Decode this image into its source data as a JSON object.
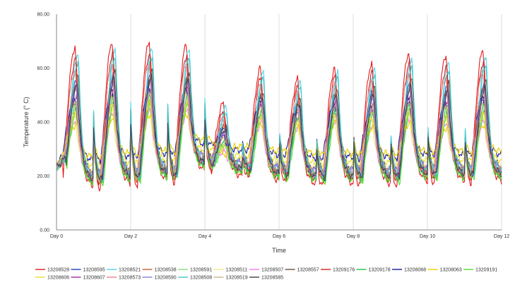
{
  "chart_data": {
    "type": "line",
    "title": "",
    "xlabel": "Time",
    "ylabel": "Temperature (° C)",
    "ylim": [
      0,
      80
    ],
    "xlim": [
      0,
      12
    ],
    "y_ticks": [
      "0.00",
      "20.00",
      "40.00",
      "60.00",
      "80.00"
    ],
    "x_ticks": [
      "Day 0",
      "Day 2",
      "Day 4",
      "Day 6",
      "Day 8",
      "Day 10",
      "Day 12"
    ],
    "grid": "vertical",
    "legend_position": "bottom",
    "day_peaks_top": [
      68,
      70,
      70,
      69,
      47,
      60,
      56,
      60,
      62,
      66,
      65,
      67
    ],
    "day_peaks_bottom": [
      39,
      42,
      43,
      43,
      28,
      39,
      38,
      40,
      38,
      40,
      38,
      39
    ],
    "day_minimums": [
      22,
      18,
      19,
      20,
      24,
      22,
      20,
      19,
      19,
      19,
      20,
      20
    ],
    "series": [
      {
        "name": "13208528",
        "color": "#e41a1c",
        "peak_frac": 1.0,
        "min_offset": -2.5
      },
      {
        "name": "13208595",
        "color": "#1f3fbf",
        "peak_frac": 0.55,
        "min_offset": 3.0
      },
      {
        "name": "13208521",
        "color": "#4dd8e8",
        "peak_frac": 0.92,
        "min_offset": 0.5
      },
      {
        "name": "13208538",
        "color": "#c2622d",
        "peak_frac": 0.5,
        "min_offset": 1.0
      },
      {
        "name": "13208591",
        "color": "#7fe27f",
        "peak_frac": 0.2,
        "min_offset": -0.5
      },
      {
        "name": "13208511",
        "color": "#f0e68c",
        "peak_frac": 0.1,
        "min_offset": 4.0
      },
      {
        "name": "13208507",
        "color": "#f07cf0",
        "peak_frac": 0.05,
        "min_offset": 2.0
      },
      {
        "name": "13208557",
        "color": "#6b4f3a",
        "peak_frac": 0.6,
        "min_offset": 1.5
      },
      {
        "name": "13209176",
        "color": "#d42020",
        "peak_frac": 0.85,
        "min_offset": -1.0
      },
      {
        "name": "13209178",
        "color": "#22c43a",
        "peak_frac": 0.3,
        "min_offset": 0.0
      },
      {
        "name": "13208068",
        "color": "#1a1a9e",
        "peak_frac": 0.35,
        "min_offset": 7.5
      },
      {
        "name": "13208063",
        "color": "#e8d000",
        "peak_frac": 0.0,
        "min_offset": 9.0
      },
      {
        "name": "13209191",
        "color": "#55dd33",
        "peak_frac": 0.25,
        "min_offset": -1.0
      },
      {
        "name": "13208606",
        "color": "#e8e030",
        "peak_frac": 0.15,
        "min_offset": 5.5
      },
      {
        "name": "13208607",
        "color": "#a22ba2",
        "peak_frac": 0.4,
        "min_offset": 1.0
      },
      {
        "name": "13208573",
        "color": "#f08080",
        "peak_frac": 0.7,
        "min_offset": 0.5
      },
      {
        "name": "13208590",
        "color": "#8080e0",
        "peak_frac": 0.45,
        "min_offset": 2.5
      },
      {
        "name": "13208508",
        "color": "#40c8c8",
        "peak_frac": 0.8,
        "min_offset": 1.0
      },
      {
        "name": "13208519",
        "color": "#c8b480",
        "peak_frac": 0.3,
        "min_offset": 2.0
      },
      {
        "name": "13208585",
        "color": "#404050",
        "peak_frac": 0.5,
        "min_offset": 0.5
      }
    ]
  }
}
